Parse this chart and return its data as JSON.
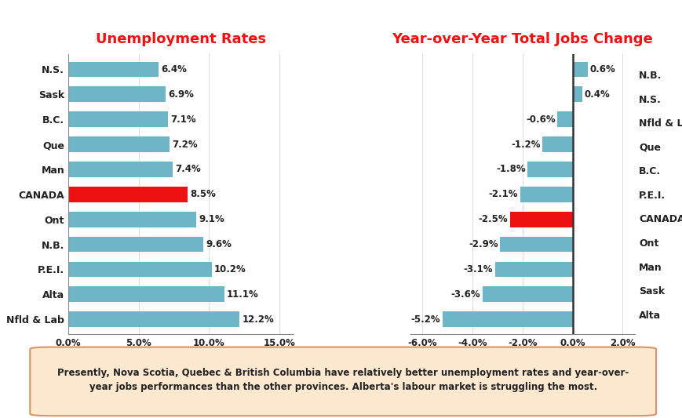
{
  "title1": "Unemployment Rates",
  "title2": "Year-over-Year Total Jobs Change",
  "left_categories": [
    "N.S.",
    "Sask",
    "B.C.",
    "Que",
    "Man",
    "CANADA",
    "Ont",
    "N.B.",
    "P.E.I.",
    "Alta",
    "Nfld & Lab"
  ],
  "left_values": [
    6.4,
    6.9,
    7.1,
    7.2,
    7.4,
    8.5,
    9.1,
    9.6,
    10.2,
    11.1,
    12.2
  ],
  "left_colors": [
    "#6eb5c8",
    "#6eb5c8",
    "#6eb5c8",
    "#6eb5c8",
    "#6eb5c8",
    "#ee1111",
    "#6eb5c8",
    "#6eb5c8",
    "#6eb5c8",
    "#6eb5c8",
    "#6eb5c8"
  ],
  "right_categories": [
    "N.B.",
    "N.S.",
    "Nfld & Lab",
    "Que",
    "B.C.",
    "P.E.I.",
    "CANADA",
    "Ont",
    "Man",
    "Sask",
    "Alta"
  ],
  "right_values": [
    0.6,
    0.4,
    -0.6,
    -1.2,
    -1.8,
    -2.1,
    -2.5,
    -2.9,
    -3.1,
    -3.6,
    -5.2
  ],
  "right_colors": [
    "#6eb5c8",
    "#6eb5c8",
    "#6eb5c8",
    "#6eb5c8",
    "#6eb5c8",
    "#6eb5c8",
    "#ee1111",
    "#6eb5c8",
    "#6eb5c8",
    "#6eb5c8",
    "#6eb5c8"
  ],
  "left_xticks": [
    0.0,
    5.0,
    10.0,
    15.0
  ],
  "left_xtick_labels": [
    "0.0%",
    "5.0%",
    "10.0%",
    "15.0%"
  ],
  "right_xticks": [
    -6.0,
    -4.0,
    -2.0,
    0.0,
    2.0
  ],
  "right_xtick_labels": [
    "-6.0%",
    "-4.0%",
    "-2.0%",
    "0.0%",
    "2.0%"
  ],
  "title_color": "#ee1111",
  "bar_color": "#6eb5c8",
  "highlight_color": "#ee1111",
  "bg_color": "#ffffff",
  "grid_color": "#dddddd",
  "footnote_line1": "Presently, Nova Scotia, Quebec & British Columbia have relatively better unemployment rates and year-over-",
  "footnote_line2": "year jobs performances than the other provinces. Alberta's labour market is struggling the most.",
  "footnote_bg": "#fde8d0",
  "footnote_border": "#d4956a"
}
